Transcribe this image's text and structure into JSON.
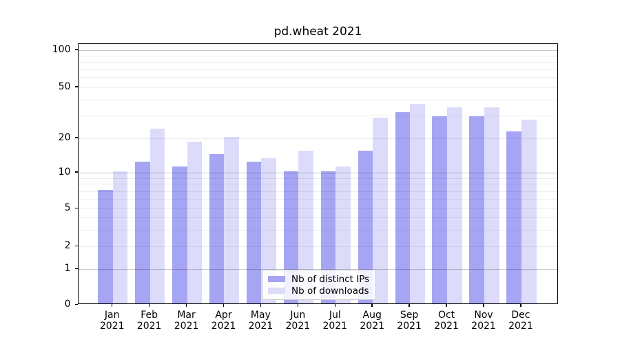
{
  "title": "pd.wheat 2021",
  "chart_data": {
    "type": "bar",
    "title": "pd.wheat 2021",
    "categories": [
      "Jan",
      "Feb",
      "Mar",
      "Apr",
      "May",
      "Jun",
      "Jul",
      "Aug",
      "Sep",
      "Oct",
      "Nov",
      "Dec"
    ],
    "category_year": "2021",
    "series": [
      {
        "name": "Nb of distinct IPs",
        "color": "#a5a5f3",
        "values": [
          7,
          12,
          11,
          14,
          12,
          10,
          10,
          15,
          31,
          29,
          29,
          22
        ]
      },
      {
        "name": "Nb of downloads",
        "color": "#dcdcfa",
        "values": [
          10,
          23,
          18,
          20,
          13,
          15,
          11,
          28,
          36,
          34,
          34,
          27
        ]
      }
    ],
    "y_ticks": [
      0,
      1,
      2,
      5,
      10,
      20,
      50,
      100
    ],
    "y_minor_gridlines": [
      2,
      3,
      4,
      5,
      6,
      7,
      8,
      9,
      20,
      30,
      40,
      50,
      60,
      70,
      80,
      90
    ],
    "y_major_gridlines": [
      1,
      10,
      100
    ],
    "y_scale": "symlog",
    "ylim": [
      0,
      110
    ],
    "grid": true,
    "legend_position": "lower center"
  }
}
